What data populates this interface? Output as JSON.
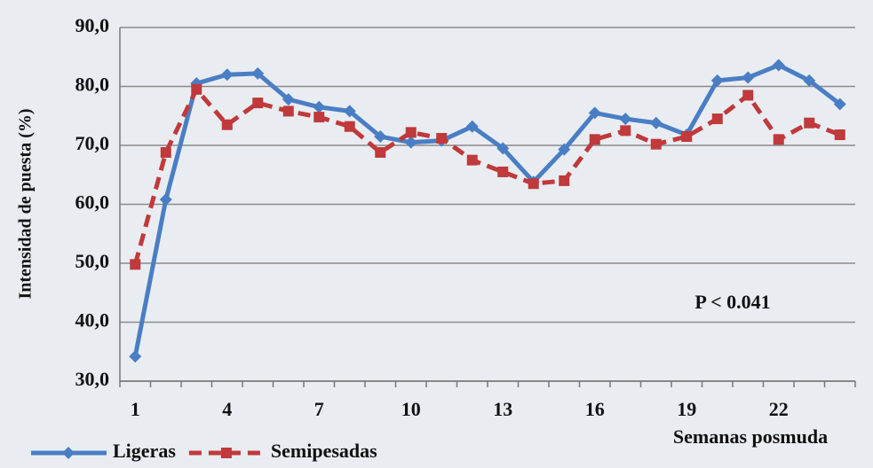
{
  "chart_data": {
    "type": "line",
    "y_label": "Intensidad de puesta (%)",
    "x_label": "Semanas posmuda",
    "annotation": "P < 0.041",
    "categories": [
      "1",
      null,
      null,
      "4",
      null,
      null,
      "7",
      null,
      null,
      "10",
      null,
      null,
      "13",
      null,
      null,
      "16",
      null,
      null,
      "19",
      null,
      null,
      "22",
      null,
      null
    ],
    "series": [
      {
        "name": "Ligeras",
        "color": "#4a7ec4",
        "dash": false,
        "marker": "diamond",
        "values": [
          34.2,
          60.8,
          80.5,
          82,
          82.2,
          77.8,
          76.5,
          75.8,
          71.5,
          70.5,
          70.8,
          73.2,
          69.5,
          63.8,
          69.3,
          75.5,
          74.5,
          73.8,
          71.8,
          81,
          81.5,
          83.6,
          81,
          77
        ]
      },
      {
        "name": "Semipesadas",
        "color": "#c0393b",
        "dash": true,
        "marker": "square",
        "values": [
          49.8,
          68.8,
          79.5,
          73.5,
          77.2,
          75.8,
          74.8,
          73.2,
          68.8,
          72.2,
          71.2,
          67.5,
          65.5,
          63.5,
          64,
          71,
          72.5,
          70.2,
          71.5,
          74.5,
          78.5,
          71,
          73.8,
          71.8
        ]
      }
    ],
    "ylim": [
      30,
      90
    ],
    "yticks": [
      {
        "value": 30,
        "label": "30,0"
      },
      {
        "value": 40,
        "label": "40,0"
      },
      {
        "value": 50,
        "label": "50,0"
      },
      {
        "value": 60,
        "label": "60,0"
      },
      {
        "value": 70,
        "label": "70,0"
      },
      {
        "value": 80,
        "label": "80,0"
      },
      {
        "value": 90,
        "label": "90,0"
      }
    ],
    "grid": true,
    "legend": "bottom-left"
  }
}
